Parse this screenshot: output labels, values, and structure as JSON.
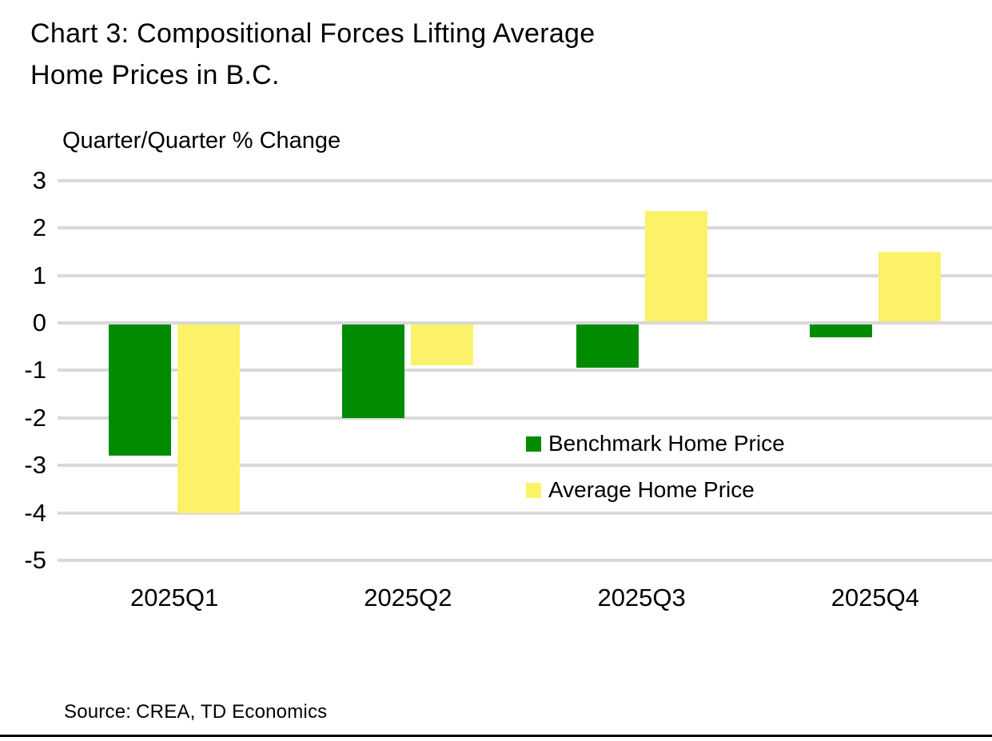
{
  "title": {
    "line1": "Chart 3: Compositional Forces Lifting Average",
    "line2": "Home Prices in B.C."
  },
  "axis_label": "Quarter/Quarter % Change",
  "source": {
    "label": "Source:",
    "text": "CREA, TD Economics"
  },
  "chart_data": {
    "type": "bar",
    "title": "Chart 3: Compositional Forces Lifting Average Home Prices in B.C.",
    "ylabel": "Quarter/Quarter % Change",
    "xlabel": "",
    "categories": [
      "2025Q1",
      "2025Q2",
      "2025Q3",
      "2025Q4"
    ],
    "series": [
      {
        "name": "Benchmark Home Price",
        "color": "#008B00",
        "values": [
          -2.8,
          -2.0,
          -0.95,
          -0.3
        ]
      },
      {
        "name": "Average Home Price",
        "color": "#FCF269",
        "values": [
          -4.0,
          -0.9,
          2.35,
          1.5
        ]
      }
    ],
    "y_ticks": [
      3,
      2,
      1,
      0,
      -1,
      -2,
      -3,
      -4,
      -5
    ],
    "ylim": [
      -5,
      3
    ],
    "grid": true,
    "gridline_color": "#D9D9D9",
    "legend_position": "inside-right"
  }
}
